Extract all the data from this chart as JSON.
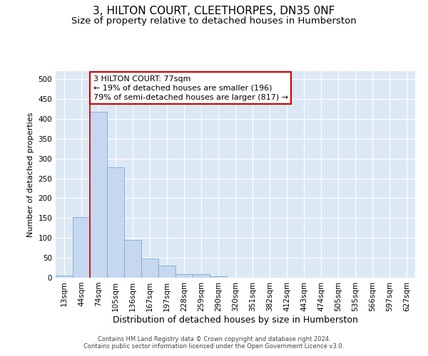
{
  "title": "3, HILTON COURT, CLEETHORPES, DN35 0NF",
  "subtitle": "Size of property relative to detached houses in Humberston",
  "xlabel": "Distribution of detached houses by size in Humberston",
  "ylabel": "Number of detached properties",
  "bar_labels": [
    "13sqm",
    "44sqm",
    "74sqm",
    "105sqm",
    "136sqm",
    "167sqm",
    "197sqm",
    "228sqm",
    "259sqm",
    "290sqm",
    "320sqm",
    "351sqm",
    "382sqm",
    "412sqm",
    "443sqm",
    "474sqm",
    "505sqm",
    "535sqm",
    "566sqm",
    "597sqm",
    "627sqm"
  ],
  "bar_values": [
    5,
    152,
    417,
    278,
    95,
    48,
    30,
    9,
    9,
    3,
    0,
    0,
    0,
    0,
    0,
    0,
    0,
    0,
    0,
    0,
    0
  ],
  "bar_color": "#c5d8f0",
  "bar_edge_color": "#7aaad4",
  "vline_color": "#cc0000",
  "vline_bin_index": 2,
  "annotation_text": "3 HILTON COURT: 77sqm\n← 19% of detached houses are smaller (196)\n79% of semi-detached houses are larger (817) →",
  "annotation_box_color": "#ffffff",
  "annotation_box_edge_color": "#cc0000",
  "ylim": [
    0,
    520
  ],
  "yticks": [
    0,
    50,
    100,
    150,
    200,
    250,
    300,
    350,
    400,
    450,
    500
  ],
  "footer_line1": "Contains HM Land Registry data © Crown copyright and database right 2024.",
  "footer_line2": "Contains public sector information licensed under the Open Government Licence v3.0.",
  "background_color": "#dce9f5",
  "grid_color": "#ffffff",
  "title_fontsize": 11,
  "subtitle_fontsize": 9.5,
  "ylabel_fontsize": 8,
  "xlabel_fontsize": 9,
  "tick_fontsize": 7.5,
  "footer_fontsize": 6,
  "annot_fontsize": 8
}
